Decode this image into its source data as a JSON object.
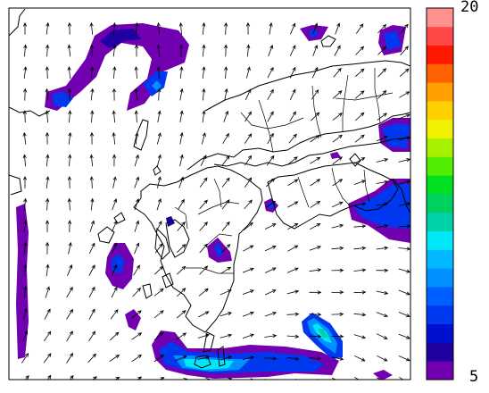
{
  "colorbar": {
    "max_label": "20",
    "min_label": "5",
    "colors": [
      "#7000b0",
      "#2000a0",
      "#0010d0",
      "#0038f0",
      "#0060ff",
      "#0090ff",
      "#00b8ff",
      "#00e8f8",
      "#00d0a8",
      "#00d060",
      "#00e020",
      "#50ee00",
      "#a8f000",
      "#f0f000",
      "#ffd000",
      "#ffa000",
      "#ff6000",
      "#ff1800",
      "#ff4848",
      "#ff9090"
    ]
  },
  "shading_colors": {
    "level1": "#7000b0",
    "level2": "#2000a0",
    "level3": "#0038f0",
    "level4": "#0090ff",
    "level5": "#00e8f8",
    "level6": "#00d0a8",
    "level7": "#50ee00"
  },
  "line_colors": {
    "coast": "#000000",
    "arrow": "#000000",
    "frame": "#000000"
  },
  "wind_field": {
    "grid_cols": 18,
    "grid_rows": 17,
    "style": "unit-vector arrows"
  }
}
